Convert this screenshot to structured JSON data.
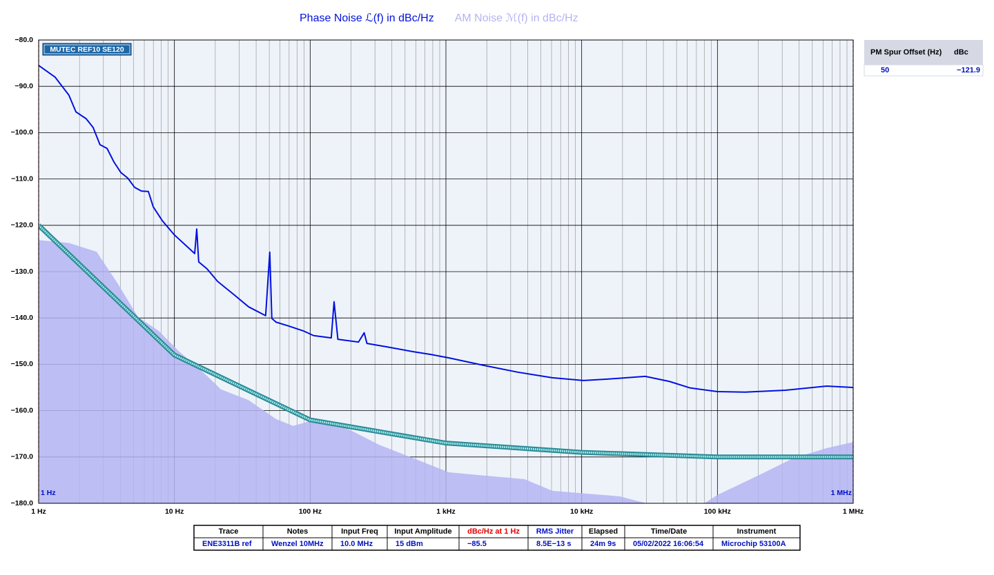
{
  "chart_data": {
    "type": "line",
    "xscale": "log",
    "grid": true,
    "minor_grid": true,
    "xlim": [
      1,
      1000000
    ],
    "ylim": [
      -180,
      -80
    ],
    "xticks": [
      {
        "value": 1,
        "label": "1 Hz"
      },
      {
        "value": 10,
        "label": "10 Hz"
      },
      {
        "value": 100,
        "label": "100 Hz"
      },
      {
        "value": 1000,
        "label": "1 kHz"
      },
      {
        "value": 10000,
        "label": "10 kHz"
      },
      {
        "value": 100000,
        "label": "100 kHz"
      },
      {
        "value": 1000000,
        "label": "1 MHz"
      }
    ],
    "yticks": [
      {
        "value": -80,
        "label": "−80.0"
      },
      {
        "value": -90,
        "label": "−90.0"
      },
      {
        "value": -100,
        "label": "−100.0"
      },
      {
        "value": -110,
        "label": "−110.0"
      },
      {
        "value": -120,
        "label": "−120.0"
      },
      {
        "value": -130,
        "label": "−130.0"
      },
      {
        "value": -140,
        "label": "−140.0"
      },
      {
        "value": -150,
        "label": "−150.0"
      },
      {
        "value": -160,
        "label": "−160.0"
      },
      {
        "value": -170,
        "label": "−170.0"
      },
      {
        "value": -180,
        "label": "−180.0"
      }
    ],
    "annotations": {
      "trace_label": "MUTEC REF10 SE120",
      "range_start": "1 Hz",
      "range_end": "1 MHz"
    },
    "series": [
      {
        "name": "AM Noise ℳ(f) in dBc/Hz",
        "color": "#b4b4f2",
        "style": "area",
        "x": [
          1,
          1.67,
          2.67,
          3.79,
          5.4,
          7.67,
          10.9,
          17.4,
          22,
          35,
          56,
          75,
          113,
          180,
          324,
          580,
          1047,
          1880,
          3800,
          6070,
          19000,
          30000,
          80000,
          100000,
          200000,
          360000,
          637000,
          1000000
        ],
        "values": [
          -123.2,
          -123.8,
          -125.7,
          -132.4,
          -139.8,
          -142.8,
          -147.3,
          -152.5,
          -155.4,
          -157.7,
          -161.8,
          -163.3,
          -161.8,
          -163.6,
          -167.4,
          -170.3,
          -173.3,
          -174.0,
          -174.8,
          -177.3,
          -178.5,
          -180,
          -180,
          -178.2,
          -174,
          -170.3,
          -168.1,
          -166.8
        ]
      },
      {
        "color": "#2a8a96",
        "style": "band",
        "x": [
          1,
          10,
          100,
          1000,
          10000,
          100000,
          1000000
        ],
        "values": [
          -120,
          -148,
          -162,
          -167,
          -169,
          -170,
          -170
        ]
      },
      {
        "name": "Phase Noise ℒ(f) in dBc/Hz",
        "color": "#0010e0",
        "style": "line",
        "x": [
          1,
          1.32,
          1.67,
          1.88,
          2.24,
          2.52,
          2.83,
          3.19,
          3.58,
          4.03,
          4.53,
          5.09,
          5.72,
          6.43,
          6.98,
          8.14,
          9.94,
          12.3,
          14.1,
          14.6,
          15.1,
          17.4,
          20.8,
          27.8,
          35.2,
          47,
          50.4,
          52.2,
          56.1,
          70.6,
          89.3,
          106,
          143,
          150,
          160,
          227,
          250,
          262,
          362,
          580,
          782,
          1047,
          1880,
          3380,
          6070,
          10300,
          15500,
          29400,
          44300,
          62900,
          100000,
          160000,
          317000,
          637000,
          1000000
        ],
        "values": [
          -85.5,
          -88.0,
          -91.9,
          -95.5,
          -97.0,
          -98.9,
          -102.6,
          -103.4,
          -106.3,
          -108.6,
          -109.8,
          -111.8,
          -112.6,
          -112.7,
          -116.0,
          -119.0,
          -122.0,
          -124.5,
          -126.1,
          -120.8,
          -127.9,
          -129.4,
          -132.1,
          -135.1,
          -137.6,
          -139.5,
          -125.8,
          -140.1,
          -140.9,
          -141.8,
          -142.8,
          -143.8,
          -144.3,
          -136.5,
          -144.6,
          -145.2,
          -143.2,
          -145.5,
          -146.2,
          -147.3,
          -147.9,
          -148.6,
          -150.2,
          -151.7,
          -152.9,
          -153.5,
          -153.2,
          -152.6,
          -153.7,
          -155.1,
          -155.9,
          -156.0,
          -155.6,
          -154.7,
          -155.0
        ]
      }
    ]
  },
  "spur_table": {
    "columns": [
      "PM Spur Offset (Hz)",
      "dBc"
    ],
    "rows": [
      [
        "50",
        "−121.9"
      ]
    ]
  },
  "summary_table": {
    "columns": [
      "Trace",
      "Notes",
      "Input Freq",
      "Input Amplitude",
      "dBc/Hz at 1 Hz",
      "RMS Jitter",
      "Elapsed",
      "Time/Date",
      "Instrument"
    ],
    "rows": [
      [
        "ENE3311B ref",
        "Wenzel 10MHz",
        "10.0 MHz",
        "15 dBm",
        "−85.5",
        "8.5E−13 s",
        "24m 9s",
        "05/02/2022 16:06:54",
        "Microchip 53100A"
      ]
    ]
  }
}
